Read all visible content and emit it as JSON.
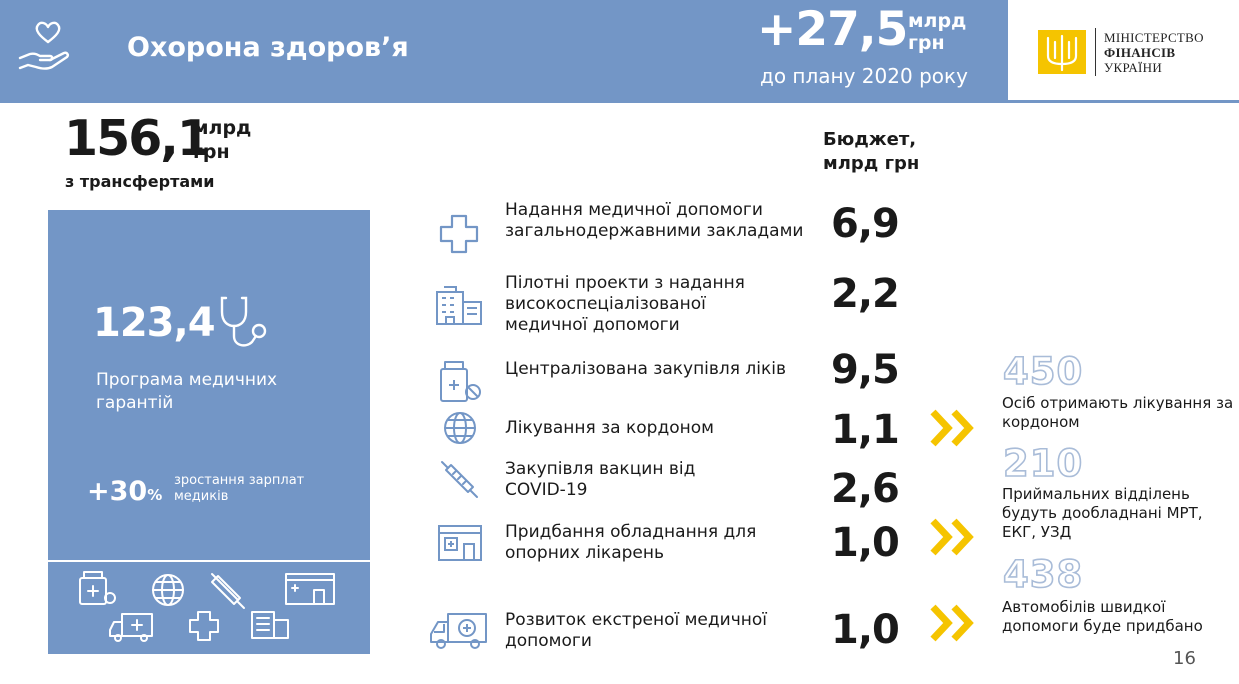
{
  "header": {
    "title": "Охорона здоров’я",
    "increase_amount": "+27,5",
    "increase_unit": "млрд грн",
    "increase_caption": "до плану 2020 року",
    "ministry_lines": [
      "Міністерство",
      "фінансів",
      "України"
    ]
  },
  "total": {
    "amount": "156,1",
    "unit": "млрд грн",
    "note": "з трансфертами"
  },
  "panel": {
    "program_amount": "123,4",
    "program_label": "Програма медичних гарантій",
    "salary_percent": "+30",
    "salary_percent_sign": "%",
    "salary_label": "зростання зарплат медиків"
  },
  "budget": {
    "header": "Бюджет, млрд грн",
    "items": [
      {
        "label": "Надання медичної допомоги загальнодержавними закладами",
        "value": "6,9",
        "icon": "medical-cross-icon"
      },
      {
        "label": "Пілотні проекти з надання високоспеціалізованої медичної допомоги",
        "value": "2,2",
        "icon": "hospital-building-icon"
      },
      {
        "label": "Централізована закупівля ліків",
        "value": "9,5",
        "icon": "medicine-bottle-icon"
      },
      {
        "label": "Лікування за кордоном",
        "value": "1,1",
        "icon": "globe-icon"
      },
      {
        "label": "Закупівля вакцин від COVID-19",
        "value": "2,6",
        "icon": "syringe-icon"
      },
      {
        "label": "Придбання обладнання для опорних лікарень",
        "value": "1,0",
        "icon": "hospital-icon"
      },
      {
        "label": "Розвиток екстреної медичної допомоги",
        "value": "1,0",
        "icon": "ambulance-icon"
      }
    ]
  },
  "stats": [
    {
      "number": "450",
      "label": "Осіб отримають лікування за кордоном"
    },
    {
      "number": "210",
      "label": "Приймальних відділень будуть дообладнані МРТ, ЕКГ, УЗД"
    },
    {
      "number": "438",
      "label": "Автомобілів швидкої допомоги буде придбано"
    }
  ],
  "page_number": "16",
  "colors": {
    "panel": "#7396c6",
    "icon": "#7396c6",
    "accent": "#f5c400"
  }
}
